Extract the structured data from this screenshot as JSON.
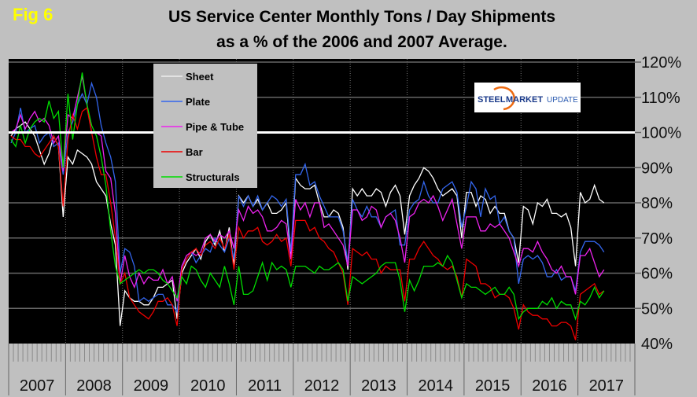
{
  "fig_label": "Fig 6",
  "title_line1": "US Service Center Monthly Tons / Day Shipments",
  "title_line2": "as a % of the 2006 and 2007 Average.",
  "logo": {
    "text_steel": "STEEL",
    "text_market": "MARKET",
    "text_update": "UPDATE"
  },
  "chart_data": {
    "type": "line",
    "title": "US Service Center Monthly Tons / Day Shipments as a % of the 2006 and 2007 Average.",
    "x_start": "2007-01",
    "x_end": "2017-06",
    "x_tick_labels": [
      "2007",
      "2008",
      "2009",
      "2010",
      "2011",
      "2012",
      "2013",
      "2014",
      "2015",
      "2016",
      "2017"
    ],
    "y_tick_labels": [
      "40%",
      "50%",
      "60%",
      "70%",
      "80%",
      "90%",
      "100%",
      "110%",
      "120%"
    ],
    "ylim": [
      40,
      120
    ],
    "y_axis_side": "right",
    "grid": true,
    "reference_line": 100,
    "legend_placement": "top-left",
    "series": [
      {
        "name": "Sheet",
        "color": "#ffffff",
        "values": [
          99,
          101,
          102,
          103,
          101,
          99,
          95,
          91,
          94,
          99,
          96,
          76,
          93,
          91,
          95,
          94,
          93,
          91,
          86,
          84,
          82,
          74,
          68,
          45,
          55,
          53,
          52,
          52,
          51,
          51,
          53,
          56,
          56,
          57,
          58,
          47,
          60,
          63,
          65,
          67,
          64,
          69,
          71,
          68,
          72,
          66,
          73,
          62,
          82,
          80,
          82,
          79,
          81,
          78,
          80,
          77,
          77,
          78,
          80,
          64,
          87,
          85,
          84,
          84,
          85,
          80,
          76,
          76,
          78,
          77,
          73,
          61,
          84,
          82,
          84,
          82,
          82,
          84,
          83,
          79,
          83,
          85,
          82,
          71,
          82,
          85,
          87,
          90,
          89,
          87,
          84,
          82,
          83,
          84,
          82,
          70,
          83,
          83,
          79,
          82,
          81,
          77,
          79,
          77,
          77,
          72,
          70,
          63,
          79,
          78,
          74,
          80,
          79,
          81,
          77,
          77,
          76,
          77,
          73,
          62,
          83,
          80,
          81,
          85,
          81,
          80
        ]
      },
      {
        "name": "Plate",
        "color": "#3366ee",
        "values": [
          97,
          100,
          107,
          100,
          101,
          102,
          97,
          99,
          100,
          96,
          97,
          88,
          100,
          103,
          108,
          111,
          108,
          114,
          110,
          102,
          97,
          93,
          86,
          60,
          67,
          66,
          62,
          52,
          53,
          52,
          53,
          54,
          54,
          51,
          51,
          49,
          62,
          64,
          66,
          63,
          65,
          67,
          66,
          70,
          68,
          66,
          70,
          64,
          82,
          79,
          82,
          79,
          82,
          78,
          80,
          82,
          81,
          79,
          81,
          66,
          88,
          88,
          91,
          85,
          86,
          82,
          79,
          76,
          76,
          76,
          72,
          63,
          81,
          78,
          76,
          79,
          76,
          76,
          73,
          76,
          77,
          78,
          68,
          68,
          78,
          80,
          81,
          86,
          82,
          80,
          80,
          84,
          85,
          86,
          83,
          73,
          79,
          86,
          84,
          76,
          84,
          81,
          82,
          74,
          76,
          72,
          70,
          57,
          64,
          65,
          64,
          65,
          63,
          59,
          59,
          61,
          58,
          59,
          59,
          55,
          66,
          69,
          69,
          69,
          68,
          66
        ]
      },
      {
        "name": "Pipe & Tube",
        "color": "#ee22ee",
        "values": [
          100,
          101,
          105,
          101,
          104,
          106,
          103,
          104,
          102,
          97,
          99,
          89,
          105,
          104,
          110,
          116,
          108,
          100,
          100,
          99,
          89,
          87,
          77,
          57,
          65,
          59,
          56,
          60,
          57,
          59,
          58,
          58,
          61,
          57,
          59,
          52,
          62,
          65,
          66,
          65,
          66,
          70,
          71,
          69,
          71,
          70,
          72,
          67,
          78,
          75,
          79,
          77,
          78,
          76,
          72,
          72,
          73,
          75,
          74,
          64,
          81,
          78,
          80,
          76,
          80,
          80,
          73,
          74,
          72,
          70,
          68,
          62,
          78,
          78,
          75,
          76,
          79,
          78,
          73,
          76,
          77,
          75,
          70,
          63,
          76,
          77,
          80,
          81,
          80,
          82,
          79,
          75,
          78,
          81,
          74,
          67,
          76,
          76,
          76,
          72,
          72,
          74,
          73,
          74,
          72,
          70,
          66,
          62,
          67,
          67,
          66,
          69,
          66,
          64,
          61,
          60,
          62,
          59,
          59,
          54,
          65,
          65,
          67,
          63,
          59,
          61
        ]
      },
      {
        "name": "Bar",
        "color": "#ee0000",
        "values": [
          99,
          98,
          98,
          96,
          96,
          94,
          93,
          95,
          97,
          99,
          96,
          79,
          98,
          105,
          101,
          106,
          107,
          100,
          93,
          88,
          88,
          80,
          70,
          57,
          60,
          53,
          51,
          49,
          48,
          47,
          49,
          52,
          52,
          53,
          51,
          45,
          61,
          64,
          66,
          67,
          65,
          68,
          69,
          67,
          70,
          67,
          71,
          61,
          73,
          70,
          72,
          72,
          73,
          69,
          68,
          69,
          71,
          69,
          70,
          62,
          75,
          75,
          75,
          72,
          73,
          70,
          69,
          67,
          66,
          63,
          60,
          51,
          67,
          66,
          65,
          66,
          64,
          64,
          60,
          62,
          61,
          61,
          61,
          52,
          64,
          64,
          67,
          69,
          67,
          65,
          64,
          62,
          61,
          62,
          59,
          53,
          64,
          63,
          62,
          57,
          57,
          56,
          53,
          54,
          54,
          53,
          50,
          44,
          51,
          49,
          48,
          48,
          47,
          47,
          45,
          45,
          46,
          46,
          45,
          41,
          54,
          55,
          56,
          57,
          54,
          55
        ]
      },
      {
        "name": "Structurals",
        "color": "#00dd00",
        "values": [
          98,
          96,
          102,
          97,
          101,
          103,
          104,
          103,
          109,
          104,
          106,
          90,
          111,
          98,
          108,
          117,
          108,
          102,
          99,
          93,
          85,
          72,
          62,
          57,
          58,
          59,
          60,
          61,
          60,
          61,
          61,
          60,
          58,
          57,
          55,
          53,
          59,
          57,
          62,
          61,
          58,
          56,
          60,
          58,
          56,
          62,
          57,
          51,
          62,
          54,
          54,
          55,
          59,
          63,
          58,
          63,
          61,
          62,
          61,
          56,
          62,
          62,
          62,
          61,
          60,
          62,
          61,
          61,
          62,
          63,
          61,
          52,
          59,
          58,
          57,
          58,
          59,
          60,
          62,
          63,
          63,
          63,
          58,
          49,
          58,
          55,
          58,
          62,
          62,
          62,
          63,
          62,
          65,
          63,
          58,
          53,
          57,
          56,
          56,
          55,
          54,
          55,
          56,
          54,
          54,
          56,
          54,
          47,
          49,
          50,
          50,
          50,
          52,
          51,
          53,
          50,
          52,
          51,
          51,
          47,
          52,
          51,
          53,
          56,
          53,
          55
        ]
      }
    ]
  }
}
